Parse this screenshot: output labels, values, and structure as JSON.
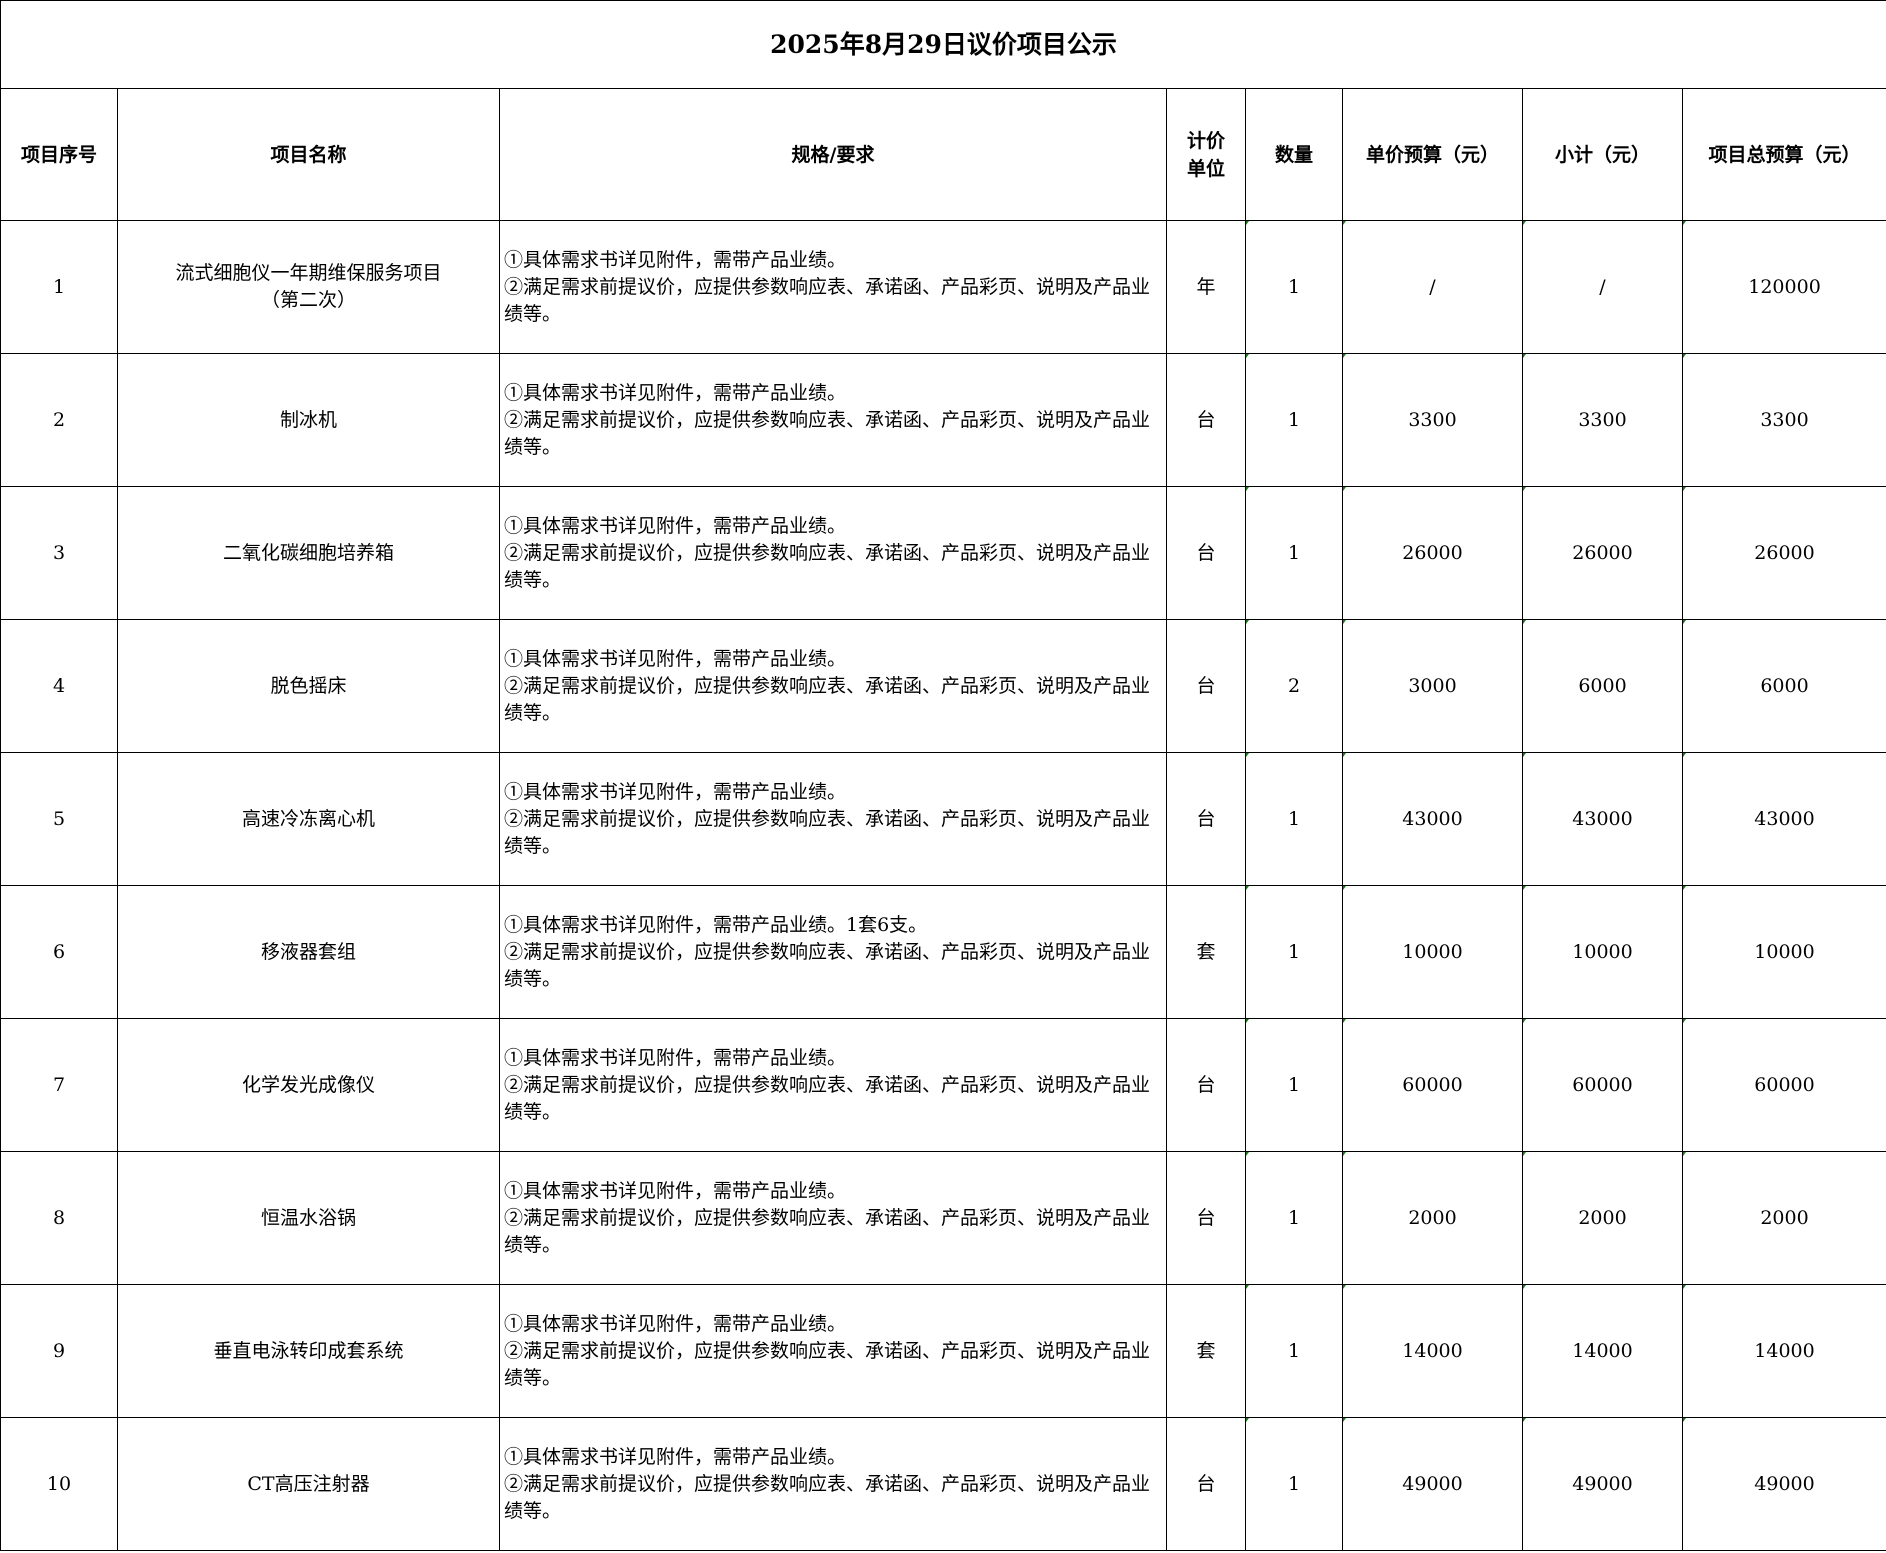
{
  "title": "2025年8月29日议价项目公示",
  "columns": [
    "项目序号",
    "项目名称",
    "规格/要求",
    "计价单位",
    "数量",
    "单价预算（元）",
    "小计（元）",
    "项目总预算（元）"
  ],
  "rows": [
    {
      "no": "1",
      "name": "流式细胞仪一年期维保服务项目（第二次）",
      "spec1": "①具体需求书详见附件，需带产品业绩。",
      "spec2": "②满足需求前提议价，应提供参数响应表、承诺函、产品彩页、说明及产品业绩等。",
      "unit": "年",
      "qty": "1",
      "price": "/",
      "subtotal": "/",
      "total": "120000"
    },
    {
      "no": "2",
      "name": "制冰机",
      "spec1": "①具体需求书详见附件，需带产品业绩。",
      "spec2": "②满足需求前提议价，应提供参数响应表、承诺函、产品彩页、说明及产品业绩等。",
      "unit": "台",
      "qty": "1",
      "price": "3300",
      "subtotal": "3300",
      "total": "3300"
    },
    {
      "no": "3",
      "name": "二氧化碳细胞培养箱",
      "spec1": "①具体需求书详见附件，需带产品业绩。",
      "spec2": "②满足需求前提议价，应提供参数响应表、承诺函、产品彩页、说明及产品业绩等。",
      "unit": "台",
      "qty": "1",
      "price": "26000",
      "subtotal": "26000",
      "total": "26000"
    },
    {
      "no": "4",
      "name": "脱色摇床",
      "spec1": "①具体需求书详见附件，需带产品业绩。",
      "spec2": "②满足需求前提议价，应提供参数响应表、承诺函、产品彩页、说明及产品业绩等。",
      "unit": "台",
      "qty": "2",
      "price": "3000",
      "subtotal": "6000",
      "total": "6000"
    },
    {
      "no": "5",
      "name": "高速冷冻离心机",
      "spec1": "①具体需求书详见附件，需带产品业绩。",
      "spec2": "②满足需求前提议价，应提供参数响应表、承诺函、产品彩页、说明及产品业绩等。",
      "unit": "台",
      "qty": "1",
      "price": "43000",
      "subtotal": "43000",
      "total": "43000"
    },
    {
      "no": "6",
      "name": "移液器套组",
      "spec1": "①具体需求书详见附件，需带产品业绩。1套6支。",
      "spec2": "②满足需求前提议价，应提供参数响应表、承诺函、产品彩页、说明及产品业绩等。",
      "unit": "套",
      "qty": "1",
      "price": "10000",
      "subtotal": "10000",
      "total": "10000"
    },
    {
      "no": "7",
      "name": "化学发光成像仪",
      "spec1": "①具体需求书详见附件，需带产品业绩。",
      "spec2": "②满足需求前提议价，应提供参数响应表、承诺函、产品彩页、说明及产品业绩等。",
      "unit": "台",
      "qty": "1",
      "price": "60000",
      "subtotal": "60000",
      "total": "60000"
    },
    {
      "no": "8",
      "name": "恒温水浴锅",
      "spec1": "①具体需求书详见附件，需带产品业绩。",
      "spec2": "②满足需求前提议价，应提供参数响应表、承诺函、产品彩页、说明及产品业绩等。",
      "unit": "台",
      "qty": "1",
      "price": "2000",
      "subtotal": "2000",
      "total": "2000"
    },
    {
      "no": "9",
      "name": "垂直电泳转印成套系统",
      "spec1": "①具体需求书详见附件，需带产品业绩。",
      "spec2": "②满足需求前提议价，应提供参数响应表、承诺函、产品彩页、说明及产品业绩等。",
      "unit": "套",
      "qty": "1",
      "price": "14000",
      "subtotal": "14000",
      "total": "14000"
    },
    {
      "no": "10",
      "name": "CT高压注射器",
      "spec1": "①具体需求书详见附件，需带产品业绩。",
      "spec2": "②满足需求前提议价，应提供参数响应表、承诺函、产品彩页、说明及产品业绩等。",
      "unit": "台",
      "qty": "1",
      "price": "49000",
      "subtotal": "49000",
      "total": "49000"
    }
  ]
}
